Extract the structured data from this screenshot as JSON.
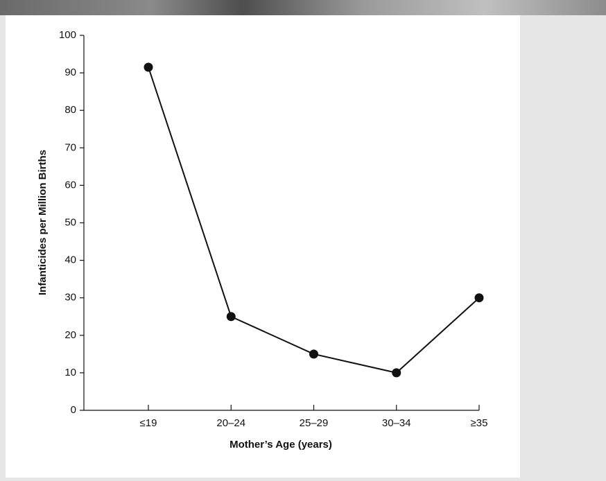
{
  "chart_data": {
    "type": "line",
    "categories": [
      "≤19",
      "20–24",
      "25–29",
      "30–34",
      "≥35"
    ],
    "series": [
      {
        "name": "Infanticides",
        "color": "#111111",
        "values": [
          91.5,
          25,
          15,
          10,
          30
        ]
      }
    ],
    "x_label": "Mother’s Age (years)",
    "y_label": "Infanticides per Million Births",
    "ylim": [
      0,
      100
    ],
    "yticks": [
      0,
      10,
      20,
      30,
      40,
      50,
      60,
      70,
      80,
      90,
      100
    ]
  }
}
